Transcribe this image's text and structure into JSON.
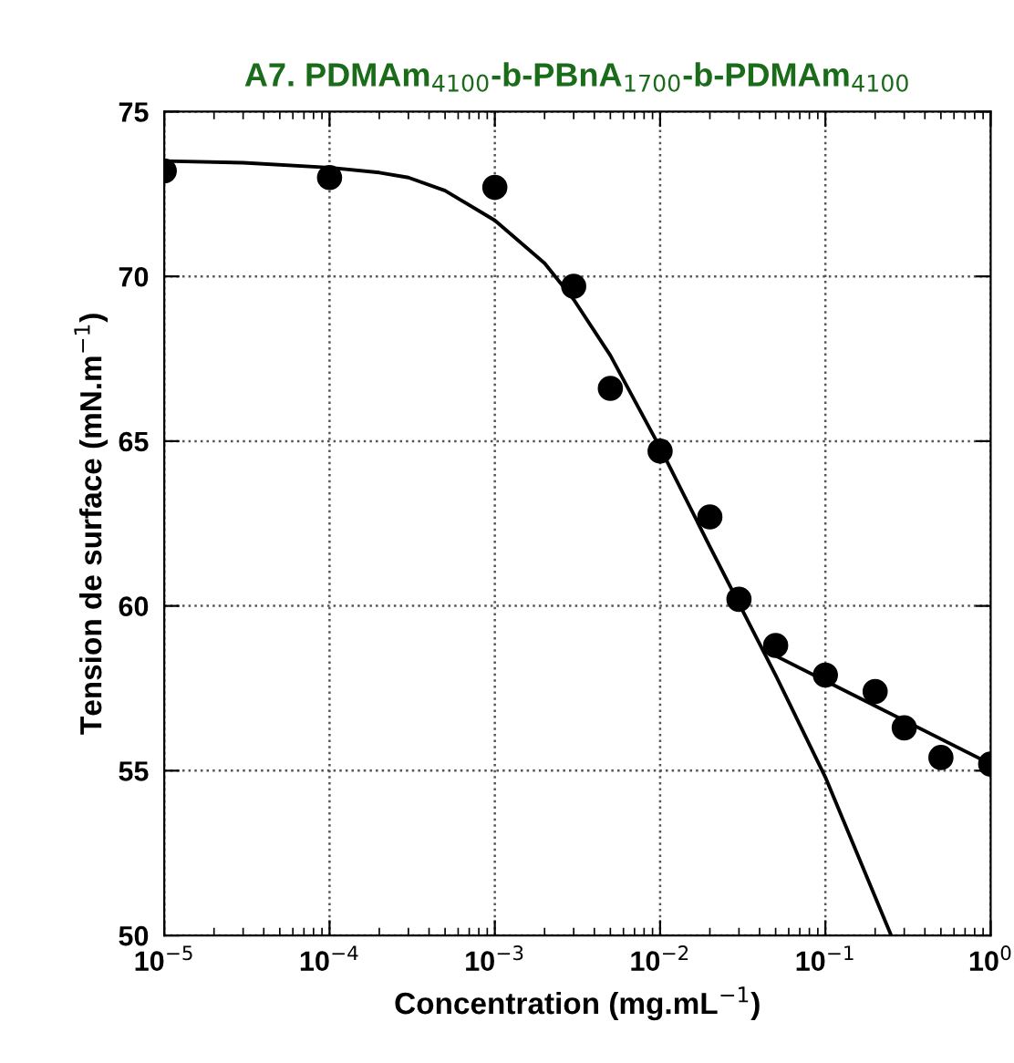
{
  "chart_data": {
    "type": "scatter",
    "title": "A7. PDMAm$_{4100}$-b-PBnA$_{1700}$-b-PDMAm$_{4100}$",
    "xlabel": "Concentration (mg.mL$^{−1}$)",
    "ylabel": "Tension de surface (mN.m$^{−1}$)",
    "log": "x",
    "grid": true,
    "marker": "circle",
    "xlim": [
      1e-05,
      1
    ],
    "ylim": [
      50,
      75
    ],
    "xticks": [
      {
        "value": 1e-05,
        "label": "10$^{−5}$"
      },
      {
        "value": 0.0001,
        "label": "10$^{−4}$"
      },
      {
        "value": 0.001,
        "label": "10$^{−3}$"
      },
      {
        "value": 0.01,
        "label": "10$^{−2}$"
      },
      {
        "value": 0.1,
        "label": "10$^{−1}$"
      },
      {
        "value": 1,
        "label": "10$^{0}$"
      }
    ],
    "yticks": [
      50,
      55,
      60,
      65,
      70,
      75
    ],
    "series": [
      {
        "color": "#000000",
        "x": [
          1e-05,
          0.0001,
          0.001,
          0.003,
          0.005,
          0.01,
          0.02,
          0.03,
          0.05,
          0.1,
          0.2,
          0.3,
          0.5,
          1
        ],
        "values": [
          73.2,
          73.0,
          72.7,
          69.7,
          66.6,
          64.7,
          62.7,
          60.2,
          58.8,
          57.9,
          57.4,
          56.3,
          55.4,
          55.2
        ]
      },
      {
        "type": "line",
        "color": "#000000",
        "marker": "none",
        "x": [
          1e-05,
          3e-05,
          0.0001,
          0.0002,
          0.0003,
          0.0005,
          0.001,
          0.002,
          0.003,
          0.005,
          0.01,
          0.02,
          0.05,
          0.1,
          0.25
        ],
        "values": [
          73.5,
          73.45,
          73.3,
          73.15,
          73.0,
          72.6,
          71.7,
          70.4,
          69.3,
          67.6,
          64.8,
          61.8,
          57.9,
          54.8,
          50
        ]
      },
      {
        "type": "line",
        "color": "#000000",
        "marker": "none",
        "x": [
          0.045,
          1
        ],
        "values": [
          58.6,
          55.2
        ]
      }
    ]
  }
}
